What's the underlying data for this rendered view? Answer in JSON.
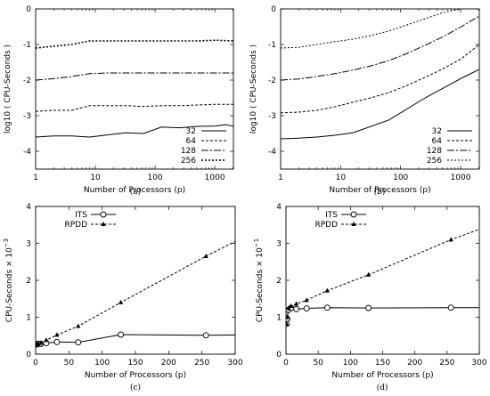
{
  "chart_data": [
    {
      "type": "line",
      "caption": "(a)",
      "xlabel": "Number of Processors (p)",
      "ylabel": "log10 ( CPU-Seconds )",
      "xscale": "log",
      "xlim": [
        1,
        2048
      ],
      "ylim": [
        -4.5,
        0
      ],
      "xticks": [
        {
          "v": 1,
          "t": "1"
        },
        {
          "v": 10,
          "t": "10"
        },
        {
          "v": 100,
          "t": "100"
        },
        {
          "v": 1000,
          "t": "1000"
        }
      ],
      "yticks": [
        {
          "v": 0,
          "t": "0"
        },
        {
          "v": -1,
          "t": "-1"
        },
        {
          "v": -2,
          "t": "-2"
        },
        {
          "v": -3,
          "t": "-3"
        },
        {
          "v": -4,
          "t": "-4"
        }
      ],
      "legend_position": "bottom-right",
      "series": [
        {
          "name": "32",
          "dash": "",
          "x": [
            1,
            2,
            4,
            8,
            16,
            32,
            64,
            128,
            256,
            512,
            1024,
            1536,
            2048
          ],
          "y": [
            -3.6,
            -3.57,
            -3.57,
            -3.6,
            -3.54,
            -3.48,
            -3.5,
            -3.32,
            -3.34,
            -3.3,
            -3.29,
            -3.25,
            -3.3
          ]
        },
        {
          "name": "64",
          "dash": "3,2",
          "x": [
            1,
            2,
            4,
            8,
            16,
            32,
            64,
            128,
            256,
            512,
            1024,
            2048
          ],
          "y": [
            -2.88,
            -2.85,
            -2.85,
            -2.72,
            -2.72,
            -2.72,
            -2.74,
            -2.72,
            -2.72,
            -2.7,
            -2.68,
            -2.68
          ]
        },
        {
          "name": "128",
          "dash": "8,2,2,2",
          "x": [
            1,
            2,
            4,
            8,
            16,
            32,
            64,
            128,
            256,
            512,
            1024,
            2048
          ],
          "y": [
            -2.0,
            -1.96,
            -1.9,
            -1.82,
            -1.8,
            -1.8,
            -1.8,
            -1.8,
            -1.8,
            -1.8,
            -1.8,
            -1.8
          ]
        },
        {
          "name": "256",
          "dash": "2,2",
          "x": [
            1,
            2,
            4,
            8,
            16,
            32,
            64,
            128,
            256,
            512,
            1024,
            2048
          ],
          "y": [
            -1.1,
            -1.05,
            -1.0,
            -0.9,
            -0.9,
            -0.9,
            -0.9,
            -0.9,
            -0.9,
            -0.9,
            -0.88,
            -0.9
          ]
        }
      ]
    },
    {
      "type": "line",
      "caption": "(b)",
      "xlabel": "Number of Processors (p)",
      "ylabel": "log10 ( CPU-Seconds )",
      "xscale": "log",
      "xlim": [
        1,
        2048
      ],
      "ylim": [
        -4.5,
        0
      ],
      "xticks": [
        {
          "v": 1,
          "t": "1"
        },
        {
          "v": 10,
          "t": "10"
        },
        {
          "v": 100,
          "t": "100"
        },
        {
          "v": 1000,
          "t": "1000"
        }
      ],
      "yticks": [
        {
          "v": 0,
          "t": "0"
        },
        {
          "v": -1,
          "t": "-1"
        },
        {
          "v": -2,
          "t": "-2"
        },
        {
          "v": -3,
          "t": "-3"
        },
        {
          "v": -4,
          "t": "-4"
        }
      ],
      "legend_position": "bottom-right",
      "series": [
        {
          "name": "32",
          "dash": "",
          "x": [
            1,
            2,
            4,
            8,
            16,
            64,
            256,
            1024,
            2048
          ],
          "y": [
            -3.65,
            -3.63,
            -3.6,
            -3.55,
            -3.48,
            -3.12,
            -2.5,
            -1.95,
            -1.7
          ]
        },
        {
          "name": "64",
          "dash": "3,2",
          "x": [
            1,
            2,
            4,
            8,
            16,
            32,
            64,
            128,
            256,
            512,
            1024,
            2048
          ],
          "y": [
            -2.92,
            -2.9,
            -2.85,
            -2.75,
            -2.62,
            -2.5,
            -2.35,
            -2.15,
            -1.92,
            -1.68,
            -1.4,
            -1.0
          ]
        },
        {
          "name": "128",
          "dash": "8,2,2,2",
          "x": [
            1,
            2,
            4,
            8,
            16,
            32,
            64,
            128,
            256,
            512,
            1024,
            2048
          ],
          "y": [
            -2.0,
            -1.97,
            -1.9,
            -1.82,
            -1.72,
            -1.6,
            -1.45,
            -1.25,
            -1.02,
            -0.78,
            -0.5,
            -0.2
          ]
        },
        {
          "name": "256",
          "dash": "2,2",
          "x": [
            1,
            2,
            4,
            8,
            16,
            32,
            64,
            128,
            256,
            512,
            1024,
            2048
          ],
          "y": [
            -1.1,
            -1.08,
            -1.0,
            -0.92,
            -0.85,
            -0.75,
            -0.62,
            -0.45,
            -0.28,
            -0.1,
            0,
            0
          ]
        }
      ]
    },
    {
      "type": "line",
      "caption": "(c)",
      "xlabel": "Number of Processors (p)",
      "ylabel": "CPU-Seconds × 10",
      "ylabel_exponent": "−3",
      "xscale": "linear",
      "xlim": [
        0,
        300
      ],
      "ylim": [
        0,
        4
      ],
      "xticks": [
        {
          "v": 0,
          "t": "0"
        },
        {
          "v": 50,
          "t": "50"
        },
        {
          "v": 100,
          "t": "100"
        },
        {
          "v": 150,
          "t": "150"
        },
        {
          "v": 200,
          "t": "200"
        },
        {
          "v": 250,
          "t": "250"
        },
        {
          "v": 300,
          "t": "300"
        }
      ],
      "yticks": [
        {
          "v": 0,
          "t": "0"
        },
        {
          "v": 1,
          "t": "1"
        },
        {
          "v": 2,
          "t": "2"
        },
        {
          "v": 3,
          "t": "3"
        },
        {
          "v": 4,
          "t": "4"
        }
      ],
      "legend_position": "top-left",
      "series": [
        {
          "name": "ITS",
          "dash": "",
          "marker": "circle",
          "x": [
            1,
            2,
            4,
            8,
            16,
            32,
            64,
            128,
            256,
            300
          ],
          "y": [
            0.26,
            0.27,
            0.28,
            0.28,
            0.3,
            0.33,
            0.32,
            0.53,
            0.51,
            0.52
          ]
        },
        {
          "name": "RPDD",
          "dash": "3,2",
          "marker": "triangle",
          "x": [
            1,
            2,
            4,
            8,
            16,
            32,
            64,
            128,
            256,
            300
          ],
          "y": [
            0.26,
            0.27,
            0.28,
            0.3,
            0.38,
            0.52,
            0.76,
            1.4,
            2.65,
            3.05
          ]
        }
      ]
    },
    {
      "type": "line",
      "caption": "(d)",
      "xlabel": "Number of Processors (p)",
      "ylabel": "CPU-Seconds × 10",
      "ylabel_exponent": "−1",
      "xscale": "linear",
      "xlim": [
        0,
        300
      ],
      "ylim": [
        0,
        4
      ],
      "xticks": [
        {
          "v": 0,
          "t": "0"
        },
        {
          "v": 50,
          "t": "50"
        },
        {
          "v": 100,
          "t": "100"
        },
        {
          "v": 150,
          "t": "150"
        },
        {
          "v": 200,
          "t": "200"
        },
        {
          "v": 250,
          "t": "250"
        },
        {
          "v": 300,
          "t": "300"
        }
      ],
      "yticks": [
        {
          "v": 0,
          "t": "0"
        },
        {
          "v": 1,
          "t": "1"
        },
        {
          "v": 2,
          "t": "2"
        },
        {
          "v": 3,
          "t": "3"
        },
        {
          "v": 4,
          "t": "4"
        }
      ],
      "legend_position": "top-left",
      "series": [
        {
          "name": "ITS",
          "dash": "",
          "marker": "circle",
          "x": [
            1,
            2,
            4,
            8,
            16,
            32,
            64,
            128,
            256,
            300
          ],
          "y": [
            0.82,
            0.96,
            1.2,
            1.25,
            1.22,
            1.24,
            1.26,
            1.25,
            1.26,
            1.26
          ]
        },
        {
          "name": "RPDD",
          "dash": "3,2",
          "marker": "triangle",
          "x": [
            1,
            2,
            4,
            8,
            16,
            32,
            64,
            128,
            256,
            300
          ],
          "y": [
            0.82,
            1.0,
            1.25,
            1.3,
            1.36,
            1.46,
            1.72,
            2.15,
            3.1,
            3.38
          ]
        }
      ]
    }
  ]
}
